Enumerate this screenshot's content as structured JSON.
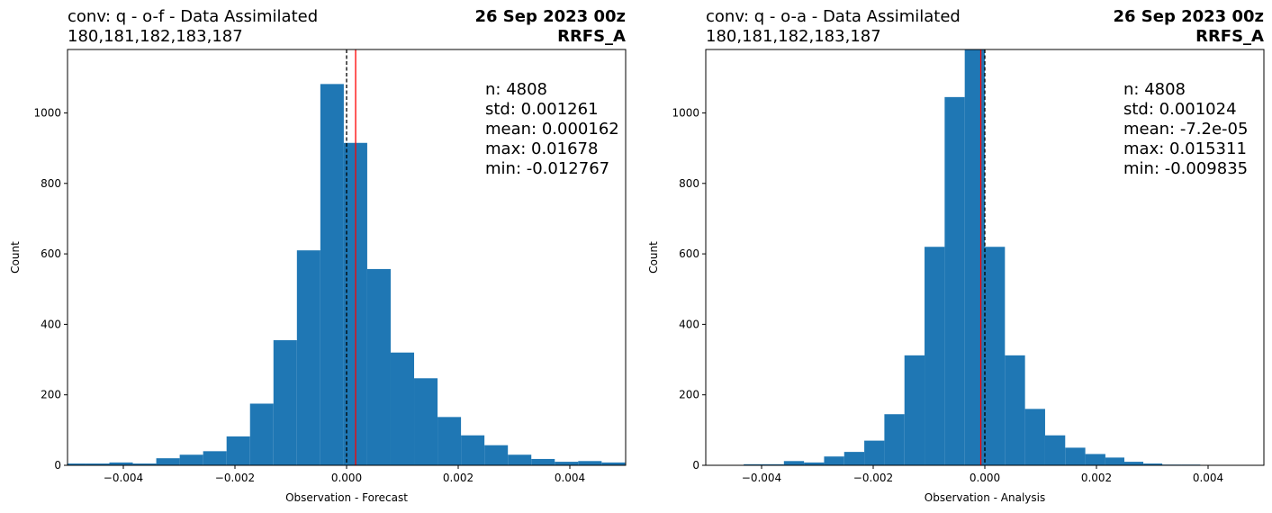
{
  "chart_data": [
    {
      "type": "histogram",
      "title_left": [
        "conv: q - o-f - Data Assimilated",
        "180,181,182,183,187"
      ],
      "title_right": [
        "26 Sep 2023 00z",
        "RRFS_A"
      ],
      "xlabel": "Observation - Forecast",
      "ylabel": "Count",
      "xlim": [
        -0.005,
        0.005
      ],
      "ylim": [
        0,
        1180
      ],
      "xticks": [
        -0.004,
        -0.002,
        0.0,
        0.002,
        0.004
      ],
      "xtick_labels": [
        "−0.004",
        "−0.002",
        "0.000",
        "0.002",
        "0.004"
      ],
      "yticks": [
        0,
        200,
        400,
        600,
        800,
        1000
      ],
      "yticks_labels": [
        "0",
        "200",
        "400",
        "600",
        "800",
        "1000"
      ],
      "bin_edges": [
        -0.0051,
        -0.00467,
        -0.00425,
        -0.00383,
        -0.00341,
        -0.00299,
        -0.00257,
        -0.00215,
        -0.00173,
        -0.00131,
        -0.00089,
        -0.00047,
        -5e-05,
        0.00037,
        0.00079,
        0.00121,
        0.00163,
        0.00205,
        0.00247,
        0.00289,
        0.00331,
        0.00373,
        0.00415,
        0.00457,
        0.00499
      ],
      "counts": [
        5,
        5,
        8,
        5,
        20,
        30,
        40,
        82,
        175,
        355,
        610,
        1082,
        915,
        557,
        320,
        247,
        137,
        85,
        57,
        30,
        18,
        10,
        12,
        8
      ],
      "vlines": [
        {
          "x": 0.0,
          "color": "#000000",
          "style": "dashed"
        },
        {
          "x": 0.000162,
          "color": "#ff0000",
          "style": "solid"
        }
      ],
      "bar_color": "#1f77b4",
      "stats": [
        "n: 4808",
        "std: 0.001261",
        "mean: 0.000162",
        "max: 0.01678",
        "min: -0.012767"
      ]
    },
    {
      "type": "histogram",
      "title_left": [
        "conv: q - o-a - Data Assimilated",
        "180,181,182,183,187"
      ],
      "title_right": [
        "26 Sep 2023 00z",
        "RRFS_A"
      ],
      "xlabel": "Observation - Analysis",
      "ylabel": "Count",
      "xlim": [
        -0.005,
        0.005
      ],
      "ylim": [
        0,
        1180
      ],
      "xticks": [
        -0.004,
        -0.002,
        0.0,
        0.002,
        0.004
      ],
      "xtick_labels": [
        "−0.004",
        "−0.002",
        "0.000",
        "0.002",
        "0.004"
      ],
      "yticks": [
        0,
        200,
        400,
        600,
        800,
        1000
      ],
      "yticks_labels": [
        "0",
        "200",
        "400",
        "600",
        "800",
        "1000"
      ],
      "bin_edges": [
        -0.00432,
        -0.00396,
        -0.0036,
        -0.00324,
        -0.00288,
        -0.00252,
        -0.00216,
        -0.0018,
        -0.00144,
        -0.00108,
        -0.00072,
        -0.00036,
        0.0,
        0.00036,
        0.00072,
        0.00108,
        0.00144,
        0.0018,
        0.00216,
        0.0025,
        0.00284,
        0.00318,
        0.00352,
        0.00386
      ],
      "counts": [
        3,
        3,
        12,
        8,
        25,
        38,
        70,
        145,
        312,
        620,
        1045,
        1180,
        620,
        312,
        160,
        85,
        50,
        32,
        22,
        10,
        5,
        2,
        2
      ],
      "vlines": [
        {
          "x": -7.2e-05,
          "color": "#ff0000",
          "style": "solid"
        },
        {
          "x": 0.0,
          "color": "#000000",
          "style": "dashed"
        }
      ],
      "bar_color": "#1f77b4",
      "stats": [
        "n: 4808",
        "std: 0.001024",
        "mean: -7.2e-05",
        "max: 0.015311",
        "min: -0.009835"
      ]
    }
  ]
}
